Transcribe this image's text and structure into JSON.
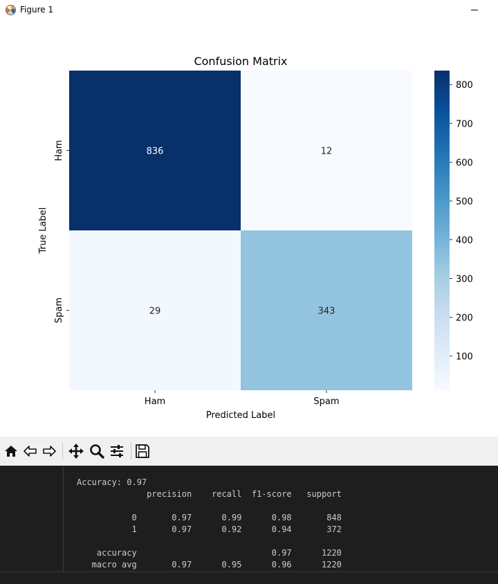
{
  "window": {
    "title": "Figure 1"
  },
  "chart_data": {
    "type": "heatmap",
    "title": "Confusion Matrix",
    "xlabel": "Predicted Label",
    "ylabel": "True Label",
    "x_categories": [
      "Ham",
      "Spam"
    ],
    "y_categories": [
      "Ham",
      "Spam"
    ],
    "values": [
      [
        836,
        12
      ],
      [
        29,
        343
      ]
    ],
    "colormap": "Blues",
    "colorbar": {
      "min": 12,
      "max": 836,
      "ticks": [
        100,
        200,
        300,
        400,
        500,
        600,
        700,
        800
      ]
    }
  },
  "toolbar": {
    "icons": [
      "home-icon",
      "back-icon",
      "forward-icon",
      "pan-icon",
      "zoom-icon",
      "configure-subplots-icon",
      "save-icon"
    ]
  },
  "console": {
    "lines": [
      "Accuracy: 0.97",
      "              precision    recall  f1-score   support",
      "",
      "           0       0.97      0.99      0.98       848",
      "           1       0.97      0.92      0.94       372",
      "",
      "    accuracy                           0.97      1220",
      "   macro avg       0.97      0.95      0.96      1220"
    ]
  }
}
